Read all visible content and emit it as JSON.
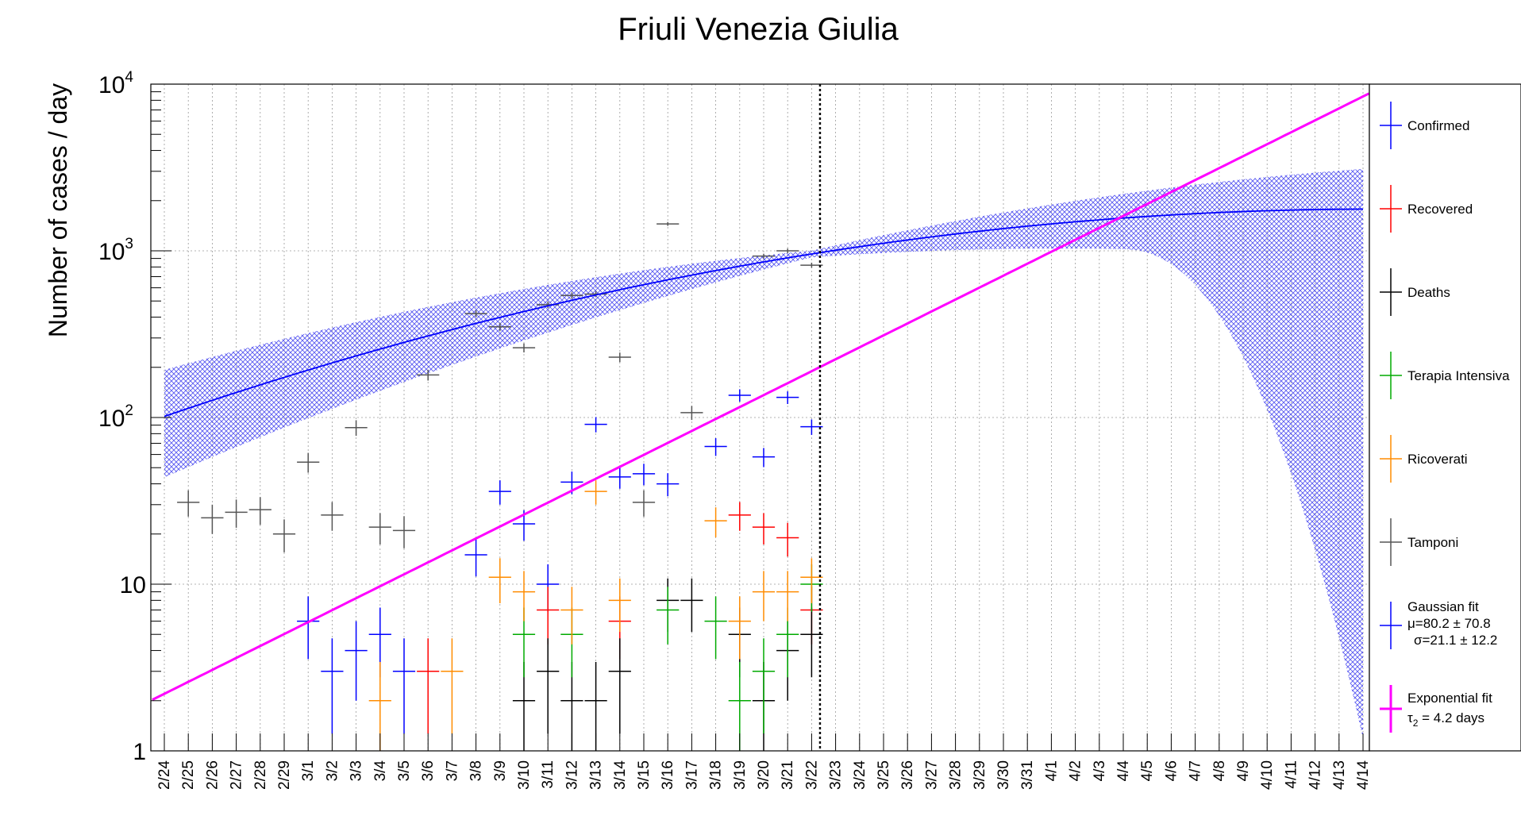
{
  "chart_data": {
    "type": "scatter",
    "title": "Friuli Venezia Giulia",
    "xlabel": "",
    "ylabel": "Number of cases / day",
    "yscale": "log",
    "ylim": [
      1,
      10000
    ],
    "y_ticks": [
      {
        "base": "1",
        "exp": ""
      },
      {
        "base": "10",
        "exp": ""
      },
      {
        "base": "10",
        "exp": "2"
      },
      {
        "base": "10",
        "exp": "3"
      },
      {
        "base": "10",
        "exp": "4"
      }
    ],
    "x_ticks": [
      "2/24",
      "2/25",
      "2/26",
      "2/27",
      "2/28",
      "2/29",
      "3/1",
      "3/2",
      "3/3",
      "3/4",
      "3/5",
      "3/6",
      "3/7",
      "3/8",
      "3/9",
      "3/10",
      "3/11",
      "3/12",
      "3/13",
      "3/14",
      "3/15",
      "3/16",
      "3/17",
      "3/18",
      "3/19",
      "3/20",
      "3/21",
      "3/22",
      "3/23",
      "3/24",
      "3/25",
      "3/26",
      "3/27",
      "3/28",
      "3/29",
      "3/30",
      "3/31",
      "4/1",
      "4/2",
      "4/3",
      "4/4",
      "4/5",
      "4/6",
      "4/7",
      "4/8",
      "4/9",
      "4/10",
      "4/11",
      "4/12",
      "4/13",
      "4/14"
    ],
    "grid": true,
    "legend_position": "right",
    "cutoff_date": "3/22",
    "series": [
      {
        "name": "Confirmed",
        "color": "#0000ff",
        "x": [
          "3/1",
          "3/2",
          "3/3",
          "3/4",
          "3/5",
          "3/8",
          "3/9",
          "3/10",
          "3/11",
          "3/12",
          "3/13",
          "3/14",
          "3/15",
          "3/16",
          "3/18",
          "3/19",
          "3/20",
          "3/21",
          "3/22"
        ],
        "values": [
          6,
          3,
          4,
          5,
          3,
          15,
          36,
          23,
          10,
          41,
          91,
          44,
          46,
          40,
          67,
          136,
          58,
          132,
          88
        ]
      },
      {
        "name": "Recovered",
        "color": "#ff0000",
        "x": [
          "3/6",
          "3/11",
          "3/14",
          "3/19",
          "3/20",
          "3/21",
          "3/22"
        ],
        "values": [
          3,
          7,
          6,
          26,
          22,
          19,
          7
        ]
      },
      {
        "name": "Deaths",
        "color": "#000000",
        "x": [
          "3/10",
          "3/11",
          "3/12",
          "3/13",
          "3/14",
          "3/16",
          "3/17",
          "3/19",
          "3/20",
          "3/21",
          "3/22"
        ],
        "values": [
          2,
          3,
          2,
          2,
          3,
          8,
          8,
          5,
          2,
          4,
          5
        ]
      },
      {
        "name": "Terapia Intensiva",
        "color": "#00aa00",
        "x": [
          "3/10",
          "3/12",
          "3/16",
          "3/18",
          "3/19",
          "3/20",
          "3/21",
          "3/22"
        ],
        "values": [
          5,
          5,
          7,
          6,
          2,
          3,
          5,
          10
        ]
      },
      {
        "name": "Ricoverati",
        "color": "#ff8c00",
        "x": [
          "3/4",
          "3/7",
          "3/9",
          "3/10",
          "3/12",
          "3/13",
          "3/14",
          "3/18",
          "3/19",
          "3/20",
          "3/21",
          "3/22"
        ],
        "values": [
          2,
          3,
          11,
          9,
          7,
          36,
          8,
          24,
          6,
          9,
          9,
          11
        ]
      },
      {
        "name": "Tamponi",
        "color": "#555555",
        "x": [
          "2/25",
          "2/26",
          "2/27",
          "2/28",
          "2/29",
          "3/1",
          "3/2",
          "3/3",
          "3/4",
          "3/5",
          "3/6",
          "3/8",
          "3/9",
          "3/10",
          "3/11",
          "3/12",
          "3/13",
          "3/14",
          "3/15",
          "3/16",
          "3/17",
          "3/20",
          "3/21",
          "3/22"
        ],
        "values": [
          31,
          25,
          27,
          28,
          20,
          54,
          26,
          87,
          22,
          21,
          180,
          420,
          350,
          262,
          475,
          540,
          550,
          230,
          31,
          1450,
          107,
          930,
          1000,
          820
        ]
      }
    ],
    "fits": [
      {
        "name": "Gaussian fit",
        "params_line1": "μ=80.2 ± 70.8",
        "params_line2": "σ=21.1 ± 12.2",
        "color": "#0000ff",
        "mu": 80.2,
        "mu_err": 70.8,
        "sigma": 21.1,
        "sigma_err": 12.2
      },
      {
        "name": "Exponential fit",
        "params_line1": "τ",
        "params_sub": "2",
        "params_line1_rest": " = 4.2 days",
        "color": "#ff00ff",
        "tau2_days": 4.2
      }
    ]
  }
}
